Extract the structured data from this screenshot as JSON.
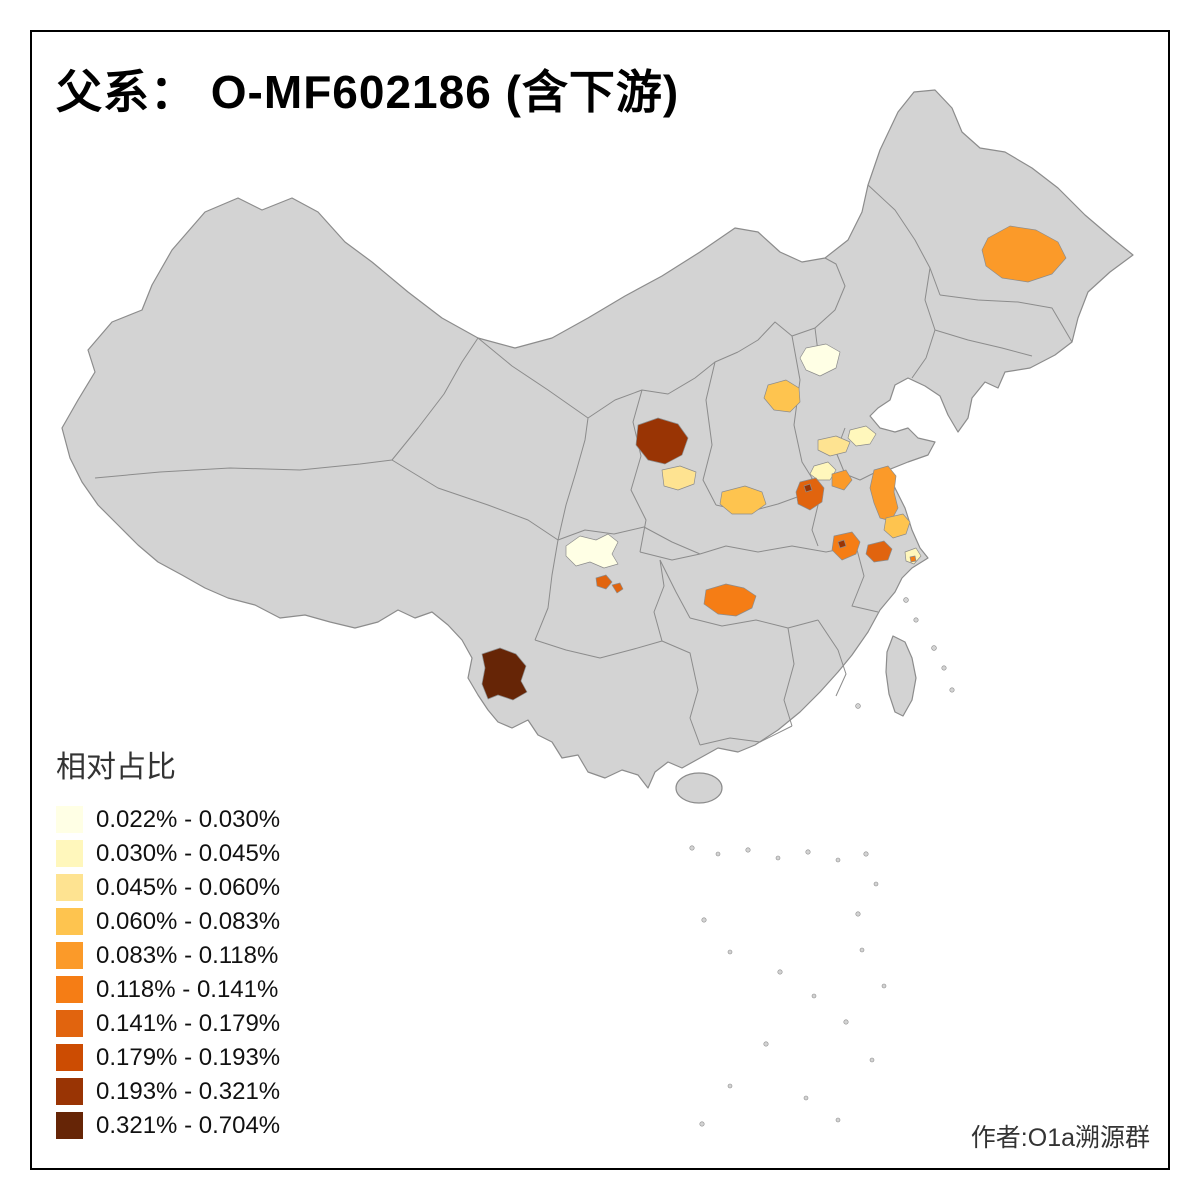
{
  "title": "父系： O-MF602186 (含下游)",
  "legend": {
    "title": "相对占比",
    "classes": [
      {
        "label": "0.022% - 0.030%",
        "color": "#FFFFE5"
      },
      {
        "label": "0.030% - 0.045%",
        "color": "#FFF7BC"
      },
      {
        "label": "0.045% - 0.060%",
        "color": "#FEE391"
      },
      {
        "label": "0.060% - 0.083%",
        "color": "#FEC44F"
      },
      {
        "label": "0.083% - 0.118%",
        "color": "#FB9A29"
      },
      {
        "label": "0.118% - 0.141%",
        "color": "#F57D15"
      },
      {
        "label": "0.141% - 0.179%",
        "color": "#E1640E"
      },
      {
        "label": "0.179% - 0.193%",
        "color": "#CC4C02"
      },
      {
        "label": "0.193% - 0.321%",
        "color": "#993404"
      },
      {
        "label": "0.321% - 0.704%",
        "color": "#662506"
      }
    ]
  },
  "credit": "作者:O1a溯源群",
  "map": {
    "land_fill": "#d3d3d3",
    "border_color": "#8c8c8c",
    "frame_color": "#000000",
    "background": "#ffffff",
    "highlighted_regions": [
      {
        "id": "heilongjiang-central",
        "class_index": 4
      },
      {
        "id": "hebei-north",
        "class_index": 0
      },
      {
        "id": "hebei-west",
        "class_index": 3
      },
      {
        "id": "shaanxi-north",
        "class_index": 8
      },
      {
        "id": "shaanxi-central",
        "class_index": 2
      },
      {
        "id": "shandong-west",
        "class_index": 2
      },
      {
        "id": "shandong-north",
        "class_index": 1
      },
      {
        "id": "henan-north",
        "class_index": 1
      },
      {
        "id": "henan-east",
        "class_index": 4
      },
      {
        "id": "henan-south",
        "class_index": 3
      },
      {
        "id": "henan-southeast",
        "class_index": 6
      },
      {
        "id": "henan-southeast-dot",
        "class_index": 8
      },
      {
        "id": "jiangsu-north",
        "class_index": 4
      },
      {
        "id": "jiangsu-central",
        "class_index": 3
      },
      {
        "id": "anhui-central",
        "class_index": 5
      },
      {
        "id": "anhui-central-dot",
        "class_index": 8
      },
      {
        "id": "anhui-east",
        "class_index": 6
      },
      {
        "id": "shanghai-area",
        "class_index": 1
      },
      {
        "id": "shanghai-dot",
        "class_index": 5
      },
      {
        "id": "sichuan-west",
        "class_index": 0
      },
      {
        "id": "sichuan-south-a",
        "class_index": 6
      },
      {
        "id": "sichuan-south-b",
        "class_index": 6
      },
      {
        "id": "hubei-hunan",
        "class_index": 5
      },
      {
        "id": "yunnan-west",
        "class_index": 9
      }
    ]
  }
}
